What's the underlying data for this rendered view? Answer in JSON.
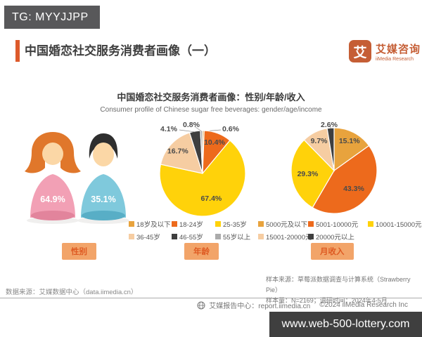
{
  "overlays": {
    "tg_badge": "TG: MYYJJPP",
    "site_badge": "www.web-500-lottery.com"
  },
  "header": {
    "title": "中国婚恋社交服务消费者画像（一）",
    "accent_color": "#DD5A2B",
    "logo": {
      "glyph": "艾",
      "name_cn": "艾媒咨询",
      "name_en": "iiMedia Research",
      "color": "#C55E35"
    }
  },
  "chart_header": {
    "title_cn": "中国婚恋社交服务消费者画像：性别/年龄/收入",
    "title_en": "Consumer profile of Chinese sugar free beverages: gender/age/income"
  },
  "chart_data": [
    {
      "type": "pictogram",
      "title": "性别",
      "categories": [
        "女性",
        "男性"
      ],
      "values": [
        64.9,
        35.1
      ],
      "unit": "%",
      "colors": {
        "female_hair": "#E0772B",
        "female_body": "#F2A0B5",
        "female_base": "#E2849C",
        "male_hair": "#2E2E2E",
        "male_body": "#7FC9DC",
        "male_base": "#58AEC6",
        "skin": "#FBD7A6"
      }
    },
    {
      "type": "pie",
      "title": "年龄",
      "categories": [
        "18岁及以下",
        "18-24岁",
        "25-35岁",
        "36-45岁",
        "46-55岁",
        "55岁以上"
      ],
      "values": [
        0.6,
        10.4,
        67.4,
        16.7,
        4.1,
        0.8
      ],
      "colors": [
        "#E8A33D",
        "#ED6A1C",
        "#FFD20A",
        "#F6CDA2",
        "#3F3F3F",
        "#ABABAB"
      ],
      "label_format": "percent",
      "legend_position": "bottom"
    },
    {
      "type": "pie",
      "title": "月收入",
      "categories": [
        "5000元及以下",
        "5001-10000元",
        "10001-15000元",
        "15001-20000元",
        "20000元以上"
      ],
      "values": [
        15.1,
        43.3,
        29.3,
        9.7,
        2.6
      ],
      "colors": [
        "#E8A33D",
        "#ED6A1C",
        "#FFD20A",
        "#F6CDA2",
        "#3F3F3F"
      ],
      "label_format": "percent",
      "legend_position": "bottom"
    }
  ],
  "footnotes": {
    "sample_source": "样本来源：草莓派数据调查与计算系统（Strawberry Pie）",
    "sample_size": "样本量：N=2169；调研时间：2024年4-5月",
    "data_source": "数据来源：艾媒数据中心（data.iimedia.cn）"
  },
  "footer": {
    "report_center": "艾媒报告中心：report.iimedia.cn",
    "copyright": "©2024 iiMedia Research Inc"
  }
}
